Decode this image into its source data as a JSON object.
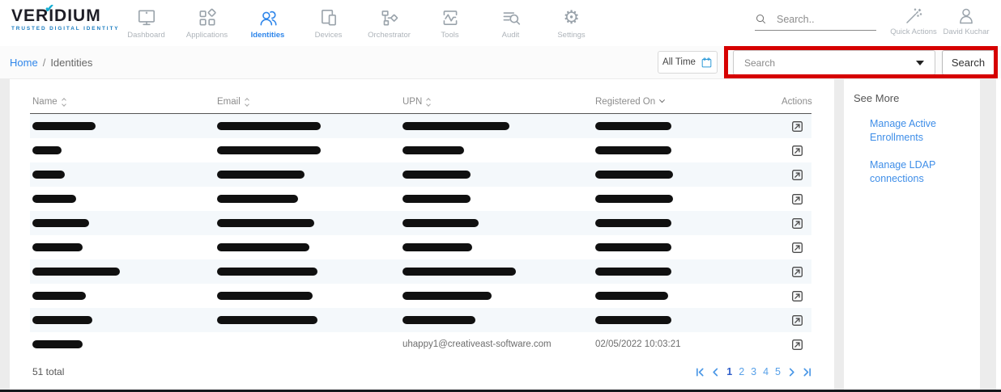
{
  "brand": {
    "name": "VERIDIUM",
    "tagline": "TRUSTED DIGITAL IDENTITY"
  },
  "nav": {
    "items": [
      {
        "label": "Dashboard",
        "icon": "dashboard-icon",
        "active": false
      },
      {
        "label": "Applications",
        "icon": "applications-icon",
        "active": false
      },
      {
        "label": "Identities",
        "icon": "identities-icon",
        "active": true
      },
      {
        "label": "Devices",
        "icon": "devices-icon",
        "active": false
      },
      {
        "label": "Orchestrator",
        "icon": "orchestrator-icon",
        "active": false
      },
      {
        "label": "Tools",
        "icon": "tools-icon",
        "active": false
      },
      {
        "label": "Audit",
        "icon": "audit-icon",
        "active": false
      },
      {
        "label": "Settings",
        "icon": "settings-icon",
        "active": false
      }
    ]
  },
  "topbar": {
    "search_placeholder": "Search..",
    "quick_actions_label": "Quick Actions",
    "user_name": "David Kuchar"
  },
  "breadcrumb": {
    "home": "Home",
    "separator": "/",
    "current": "Identities"
  },
  "filters": {
    "time_range_label": "All Time",
    "search_dropdown_placeholder": "Search",
    "search_button_label": "Search"
  },
  "table": {
    "columns": [
      {
        "label": "Name",
        "sort": "both"
      },
      {
        "label": "Email",
        "sort": "both"
      },
      {
        "label": "UPN",
        "sort": "both"
      },
      {
        "label": "Registered On",
        "sort": "desc"
      },
      {
        "label": "Actions",
        "sort": "none"
      }
    ],
    "rows": [
      {
        "name_w": 78,
        "email_w": 128,
        "upn_w": 132,
        "reg_w": 94
      },
      {
        "name_w": 36,
        "email_w": 128,
        "upn_w": 76,
        "reg_w": 94
      },
      {
        "name_w": 40,
        "email_w": 108,
        "upn_w": 84,
        "reg_w": 96
      },
      {
        "name_w": 54,
        "email_w": 100,
        "upn_w": 84,
        "reg_w": 96
      },
      {
        "name_w": 70,
        "email_w": 120,
        "upn_w": 94,
        "reg_w": 94
      },
      {
        "name_w": 62,
        "email_w": 114,
        "upn_w": 86,
        "reg_w": 94
      },
      {
        "name_w": 108,
        "email_w": 124,
        "upn_w": 140,
        "reg_w": 94
      },
      {
        "name_w": 66,
        "email_w": 118,
        "upn_w": 110,
        "reg_w": 90
      },
      {
        "name_w": 74,
        "email_w": 124,
        "upn_w": 90,
        "reg_w": 94
      },
      {
        "name_w": 62,
        "email_w": 0,
        "upn_text": "uhappy1@creativeast-software.com",
        "reg_text": "02/05/2022 10:03:21"
      }
    ],
    "total_label": "51 total"
  },
  "pagination": {
    "pages": [
      "1",
      "2",
      "3",
      "4",
      "5"
    ],
    "active_page": "1"
  },
  "sidebar": {
    "title": "See More",
    "links": [
      "Manage Active Enrollments",
      "Manage LDAP connections"
    ]
  },
  "colors": {
    "accent_blue": "#2f86ea",
    "annotation_red": "#d60000",
    "row_stripe": "#f4f8fb"
  }
}
